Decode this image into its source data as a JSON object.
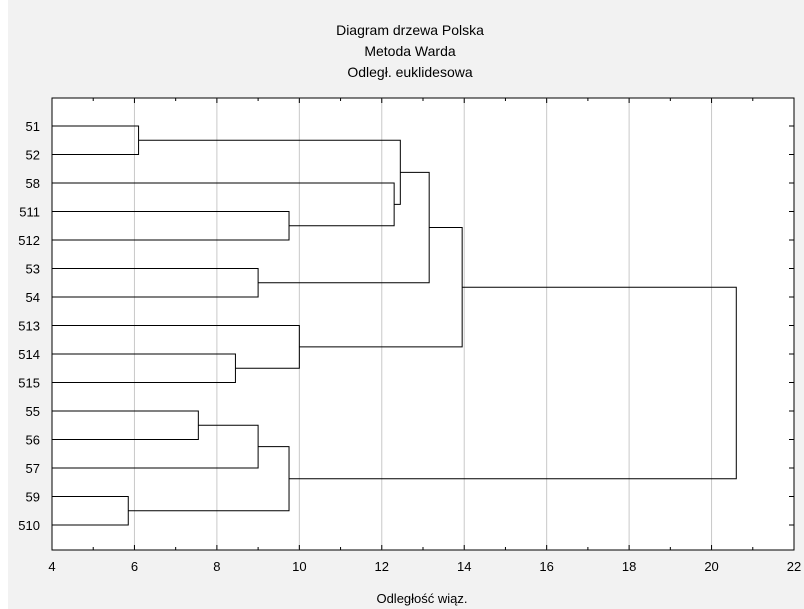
{
  "chart_data": {
    "type": "dendrogram",
    "title": [
      "Diagram drzewa Polska",
      "Metoda Warda",
      "Odległ. euklidesowa"
    ],
    "xlabel": "Odległość wiąz.",
    "xlim": [
      4,
      22
    ],
    "xticks": [
      4,
      6,
      8,
      10,
      12,
      14,
      16,
      18,
      20,
      22
    ],
    "grid": true,
    "leaves": [
      "51",
      "52",
      "58",
      "511",
      "512",
      "53",
      "54",
      "513",
      "514",
      "515",
      "55",
      "56",
      "57",
      "59",
      "510"
    ],
    "merges": [
      {
        "id": "A",
        "children": [
          "51",
          "52"
        ],
        "distance": 6.1
      },
      {
        "id": "B",
        "children": [
          "511",
          "512"
        ],
        "distance": 9.75
      },
      {
        "id": "C",
        "children": [
          "58",
          "B"
        ],
        "distance": 12.3
      },
      {
        "id": "D",
        "children": [
          "A",
          "C"
        ],
        "distance": 12.45
      },
      {
        "id": "E",
        "children": [
          "53",
          "54"
        ],
        "distance": 9.0
      },
      {
        "id": "F",
        "children": [
          "D",
          "E"
        ],
        "distance": 13.15
      },
      {
        "id": "G",
        "children": [
          "514",
          "515"
        ],
        "distance": 8.45
      },
      {
        "id": "H",
        "children": [
          "513",
          "G"
        ],
        "distance": 10.0
      },
      {
        "id": "I",
        "children": [
          "F",
          "H"
        ],
        "distance": 13.95
      },
      {
        "id": "J",
        "children": [
          "55",
          "56"
        ],
        "distance": 7.55
      },
      {
        "id": "K",
        "children": [
          "J",
          "57"
        ],
        "distance": 9.0
      },
      {
        "id": "L",
        "children": [
          "59",
          "510"
        ],
        "distance": 5.85
      },
      {
        "id": "M",
        "children": [
          "K",
          "L"
        ],
        "distance": 9.75
      },
      {
        "id": "N",
        "children": [
          "I",
          "M"
        ],
        "distance": 20.6
      }
    ]
  },
  "colors": {
    "background": "#f2f2f2",
    "plot_background": "#ffffff",
    "line": "#000000",
    "grid": "#c8c8c8"
  }
}
